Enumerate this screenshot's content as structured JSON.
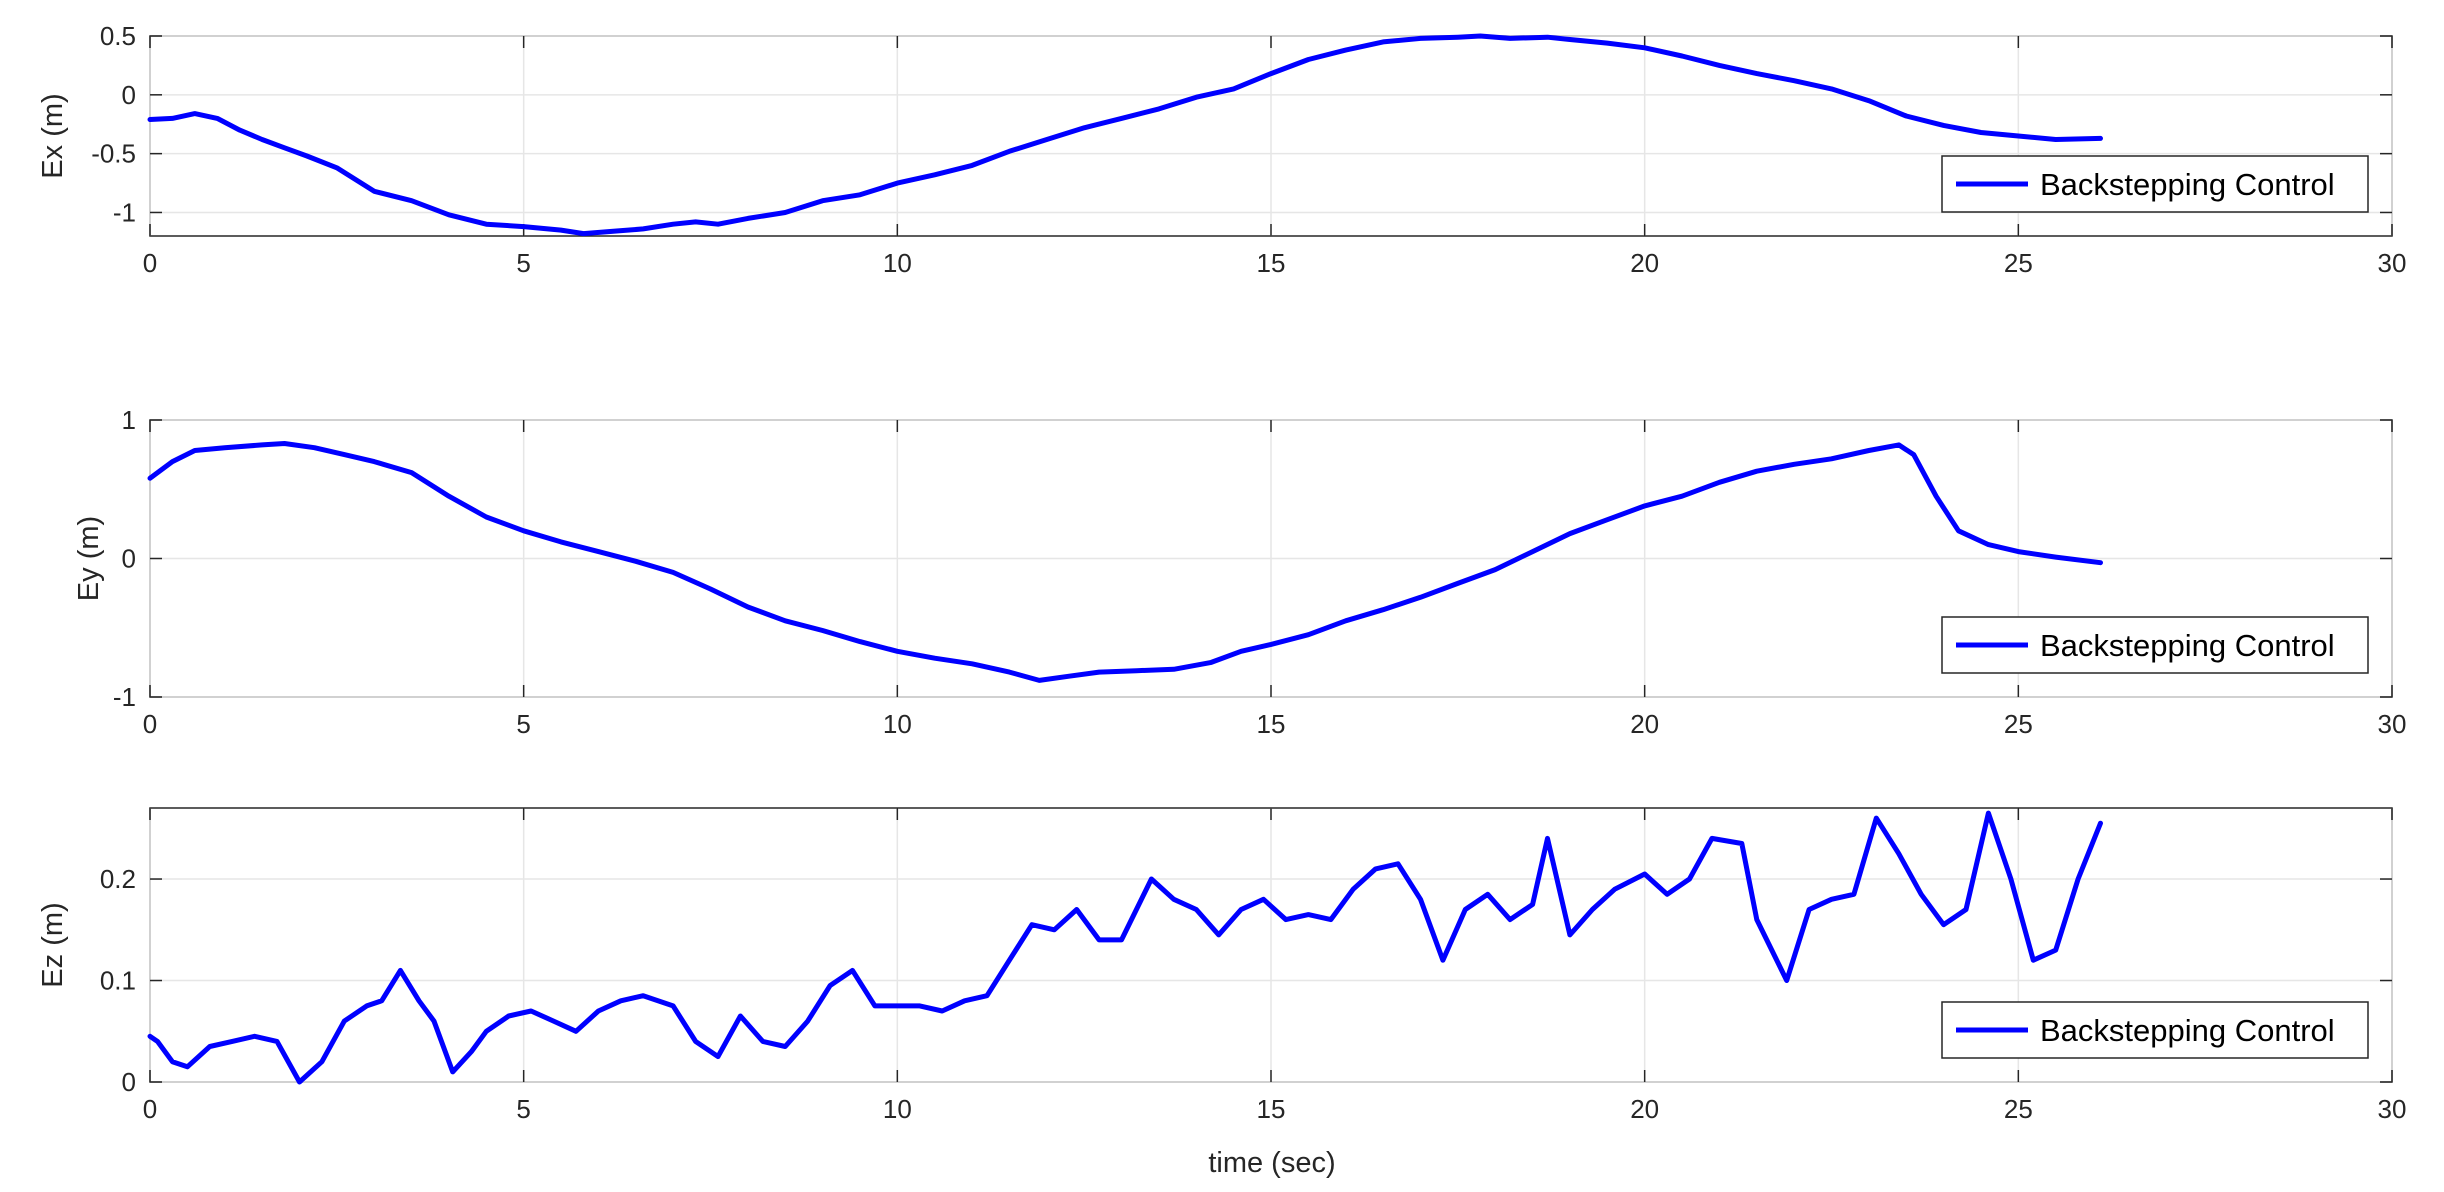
{
  "figure": {
    "xlabel": "time (sec)",
    "legend_label": "Backstepping Control",
    "line_color": "#0000ff"
  },
  "chart_data": [
    {
      "type": "line",
      "ylabel": "Ex (m)",
      "xlim": [
        0,
        30
      ],
      "ylim": [
        -1.2,
        0.5
      ],
      "xticks": [
        0,
        5,
        10,
        15,
        20,
        25,
        30
      ],
      "yticks": [
        -1,
        -0.5,
        0,
        0.5
      ],
      "grid": true,
      "legend": "bottom-right",
      "series": [
        {
          "name": "Backstepping Control",
          "x": [
            0,
            0.3,
            0.6,
            0.9,
            1.2,
            1.5,
            1.8,
            2.1,
            2.5,
            3,
            3.5,
            4,
            4.5,
            5,
            5.5,
            5.8,
            6.2,
            6.6,
            7,
            7.3,
            7.6,
            8,
            8.5,
            9,
            9.5,
            10,
            10.5,
            11,
            11.5,
            12,
            12.5,
            13,
            13.5,
            14,
            14.5,
            15,
            15.5,
            16,
            16.5,
            17,
            17.5,
            17.8,
            18.2,
            18.7,
            19,
            19.5,
            20,
            20.5,
            21,
            21.5,
            22,
            22.5,
            23,
            23.5,
            24,
            24.5,
            25,
            25.5,
            26.1
          ],
          "y": [
            -0.21,
            -0.2,
            -0.16,
            -0.2,
            -0.3,
            -0.38,
            -0.45,
            -0.52,
            -0.62,
            -0.82,
            -0.9,
            -1.02,
            -1.1,
            -1.12,
            -1.15,
            -1.18,
            -1.16,
            -1.14,
            -1.1,
            -1.08,
            -1.1,
            -1.05,
            -1.0,
            -0.9,
            -0.85,
            -0.75,
            -0.68,
            -0.6,
            -0.48,
            -0.38,
            -0.28,
            -0.2,
            -0.12,
            -0.02,
            0.05,
            0.18,
            0.3,
            0.38,
            0.45,
            0.48,
            0.49,
            0.5,
            0.48,
            0.49,
            0.47,
            0.44,
            0.4,
            0.33,
            0.25,
            0.18,
            0.12,
            0.05,
            -0.05,
            -0.18,
            -0.26,
            -0.32,
            -0.35,
            -0.38,
            -0.37
          ]
        }
      ]
    },
    {
      "type": "line",
      "ylabel": "Ey (m)",
      "xlim": [
        0,
        30
      ],
      "ylim": [
        -1,
        1
      ],
      "xticks": [
        0,
        5,
        10,
        15,
        20,
        25,
        30
      ],
      "yticks": [
        -1,
        0,
        1
      ],
      "grid": true,
      "legend": "bottom-right",
      "series": [
        {
          "name": "Backstepping Control",
          "x": [
            0,
            0.3,
            0.6,
            1,
            1.5,
            1.8,
            2.2,
            2.6,
            3,
            3.5,
            4,
            4.5,
            5,
            5.5,
            6,
            6.5,
            7,
            7.5,
            8,
            8.5,
            9,
            9.5,
            10,
            10.5,
            11,
            11.5,
            11.9,
            12.3,
            12.7,
            13.2,
            13.7,
            14.2,
            14.6,
            15,
            15.5,
            16,
            16.5,
            17,
            17.5,
            18,
            18.5,
            19,
            19.5,
            20,
            20.5,
            21,
            21.5,
            22,
            22.5,
            23,
            23.4,
            23.6,
            23.9,
            24.2,
            24.6,
            25,
            25.5,
            26.1
          ],
          "y": [
            0.58,
            0.7,
            0.78,
            0.8,
            0.82,
            0.83,
            0.8,
            0.75,
            0.7,
            0.62,
            0.45,
            0.3,
            0.2,
            0.12,
            0.05,
            -0.02,
            -0.1,
            -0.22,
            -0.35,
            -0.45,
            -0.52,
            -0.6,
            -0.67,
            -0.72,
            -0.76,
            -0.82,
            -0.88,
            -0.85,
            -0.82,
            -0.81,
            -0.8,
            -0.75,
            -0.67,
            -0.62,
            -0.55,
            -0.45,
            -0.37,
            -0.28,
            -0.18,
            -0.08,
            0.05,
            0.18,
            0.28,
            0.38,
            0.45,
            0.55,
            0.63,
            0.68,
            0.72,
            0.78,
            0.82,
            0.75,
            0.45,
            0.2,
            0.1,
            0.05,
            0.01,
            -0.03
          ]
        }
      ]
    },
    {
      "type": "line",
      "ylabel": "Ez (m)",
      "xlim": [
        0,
        30
      ],
      "ylim": [
        0,
        0.27
      ],
      "xticks": [
        0,
        5,
        10,
        15,
        20,
        25,
        30
      ],
      "yticks": [
        0,
        0.1,
        0.2
      ],
      "grid": true,
      "legend": "bottom-right",
      "series": [
        {
          "name": "Backstepping Control",
          "x": [
            0,
            0.1,
            0.3,
            0.5,
            0.8,
            1.1,
            1.4,
            1.7,
            2,
            2.3,
            2.6,
            2.9,
            3.1,
            3.35,
            3.6,
            3.8,
            4.05,
            4.3,
            4.5,
            4.8,
            5.1,
            5.4,
            5.7,
            6,
            6.3,
            6.6,
            7,
            7.3,
            7.6,
            7.9,
            8.2,
            8.5,
            8.8,
            9.1,
            9.4,
            9.7,
            10,
            10.3,
            10.6,
            10.9,
            11.2,
            11.5,
            11.8,
            12.1,
            12.4,
            12.7,
            13,
            13.4,
            13.7,
            14,
            14.3,
            14.6,
            14.9,
            15.2,
            15.5,
            15.8,
            16.1,
            16.4,
            16.7,
            17,
            17.3,
            17.6,
            17.9,
            18.2,
            18.5,
            18.7,
            19,
            19.3,
            19.6,
            20,
            20.3,
            20.6,
            20.9,
            21.3,
            21.5,
            21.9,
            22.2,
            22.5,
            22.8,
            23.1,
            23.4,
            23.7,
            24,
            24.3,
            24.6,
            24.9,
            25.2,
            25.5,
            25.8,
            26.1
          ],
          "y": [
            0.045,
            0.04,
            0.02,
            0.015,
            0.035,
            0.04,
            0.045,
            0.04,
            0.0,
            0.02,
            0.06,
            0.075,
            0.08,
            0.11,
            0.08,
            0.06,
            0.01,
            0.03,
            0.05,
            0.065,
            0.07,
            0.06,
            0.05,
            0.07,
            0.08,
            0.085,
            0.075,
            0.04,
            0.025,
            0.065,
            0.04,
            0.035,
            0.06,
            0.095,
            0.11,
            0.075,
            0.075,
            0.075,
            0.07,
            0.08,
            0.085,
            0.12,
            0.155,
            0.15,
            0.17,
            0.14,
            0.14,
            0.2,
            0.18,
            0.17,
            0.145,
            0.17,
            0.18,
            0.16,
            0.165,
            0.16,
            0.19,
            0.21,
            0.215,
            0.18,
            0.12,
            0.17,
            0.185,
            0.16,
            0.175,
            0.24,
            0.145,
            0.17,
            0.19,
            0.205,
            0.185,
            0.2,
            0.24,
            0.235,
            0.16,
            0.1,
            0.17,
            0.18,
            0.185,
            0.26,
            0.225,
            0.185,
            0.155,
            0.17,
            0.265,
            0.2,
            0.12,
            0.13,
            0.2,
            0.255
          ]
        }
      ]
    }
  ]
}
